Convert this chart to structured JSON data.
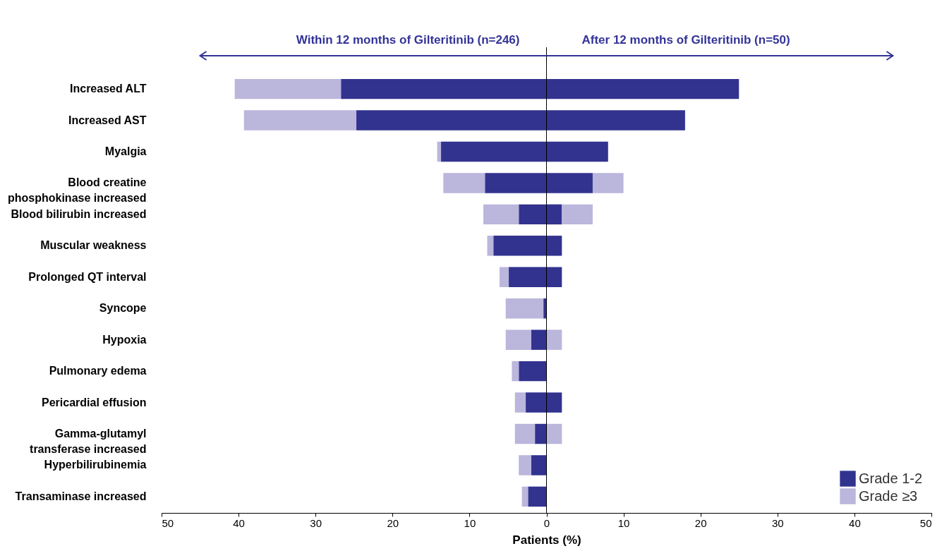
{
  "chart_data": {
    "type": "bar",
    "orientation": "horizontal",
    "stacked": true,
    "categories": [
      "Increased ALT",
      "Increased AST",
      "Myalgia",
      "Blood creatine\nphosphokinase increased",
      "Blood bilirubin increased",
      "Muscular weakness",
      "Prolonged QT interval",
      "Syncope",
      "Hypoxia",
      "Pulmonary edema",
      "Pericardial effusion",
      "Gamma-glutamyl\ntransferase increased",
      "Hyperbilirubinemia",
      "Transaminase increased"
    ],
    "series": [
      {
        "name": "Grade 1-2",
        "color": "#32338f",
        "values": [
          -26.7,
          -24.7,
          -13.7,
          -8.0,
          -3.6,
          -6.9,
          -4.9,
          -0.4,
          -2.0,
          -3.6,
          -2.7,
          -1.5,
          -2.0,
          -2.4
        ]
      },
      {
        "name": "Grade ≥3",
        "color": "#bab6dc",
        "values": [
          -13.8,
          -14.6,
          -0.5,
          -5.4,
          -4.6,
          -0.8,
          -1.2,
          -4.9,
          -3.3,
          -0.9,
          -1.4,
          -2.6,
          -1.6,
          -0.8
        ]
      },
      {
        "color": "#32338f",
        "values": [
          25,
          18,
          8,
          6,
          2,
          2,
          2,
          0,
          0,
          0,
          2,
          0,
          0,
          0
        ]
      },
      {
        "color": "#bab6dc",
        "values": [
          0,
          0,
          0,
          4,
          4,
          0,
          0,
          0,
          2,
          0,
          0,
          2,
          0,
          0
        ]
      }
    ],
    "xlim": [
      -50,
      50
    ],
    "xticks": [
      {
        "value": -50,
        "label": "50"
      },
      {
        "value": -40,
        "label": "40"
      },
      {
        "value": -30,
        "label": "30"
      },
      {
        "value": -20,
        "label": "20"
      },
      {
        "value": -10,
        "label": "10"
      },
      0,
      10,
      20,
      30,
      40,
      50
    ],
    "xlabel": "Patients (%)",
    "annotations": [
      "Within 12 months of Gilteritinib (n=246)",
      "After 12 months of Gilteritinib (n=50)"
    ],
    "ref_lines": [
      {
        "axis": "x",
        "value": 0
      }
    ],
    "legend": "bottom right",
    "grid": false
  }
}
